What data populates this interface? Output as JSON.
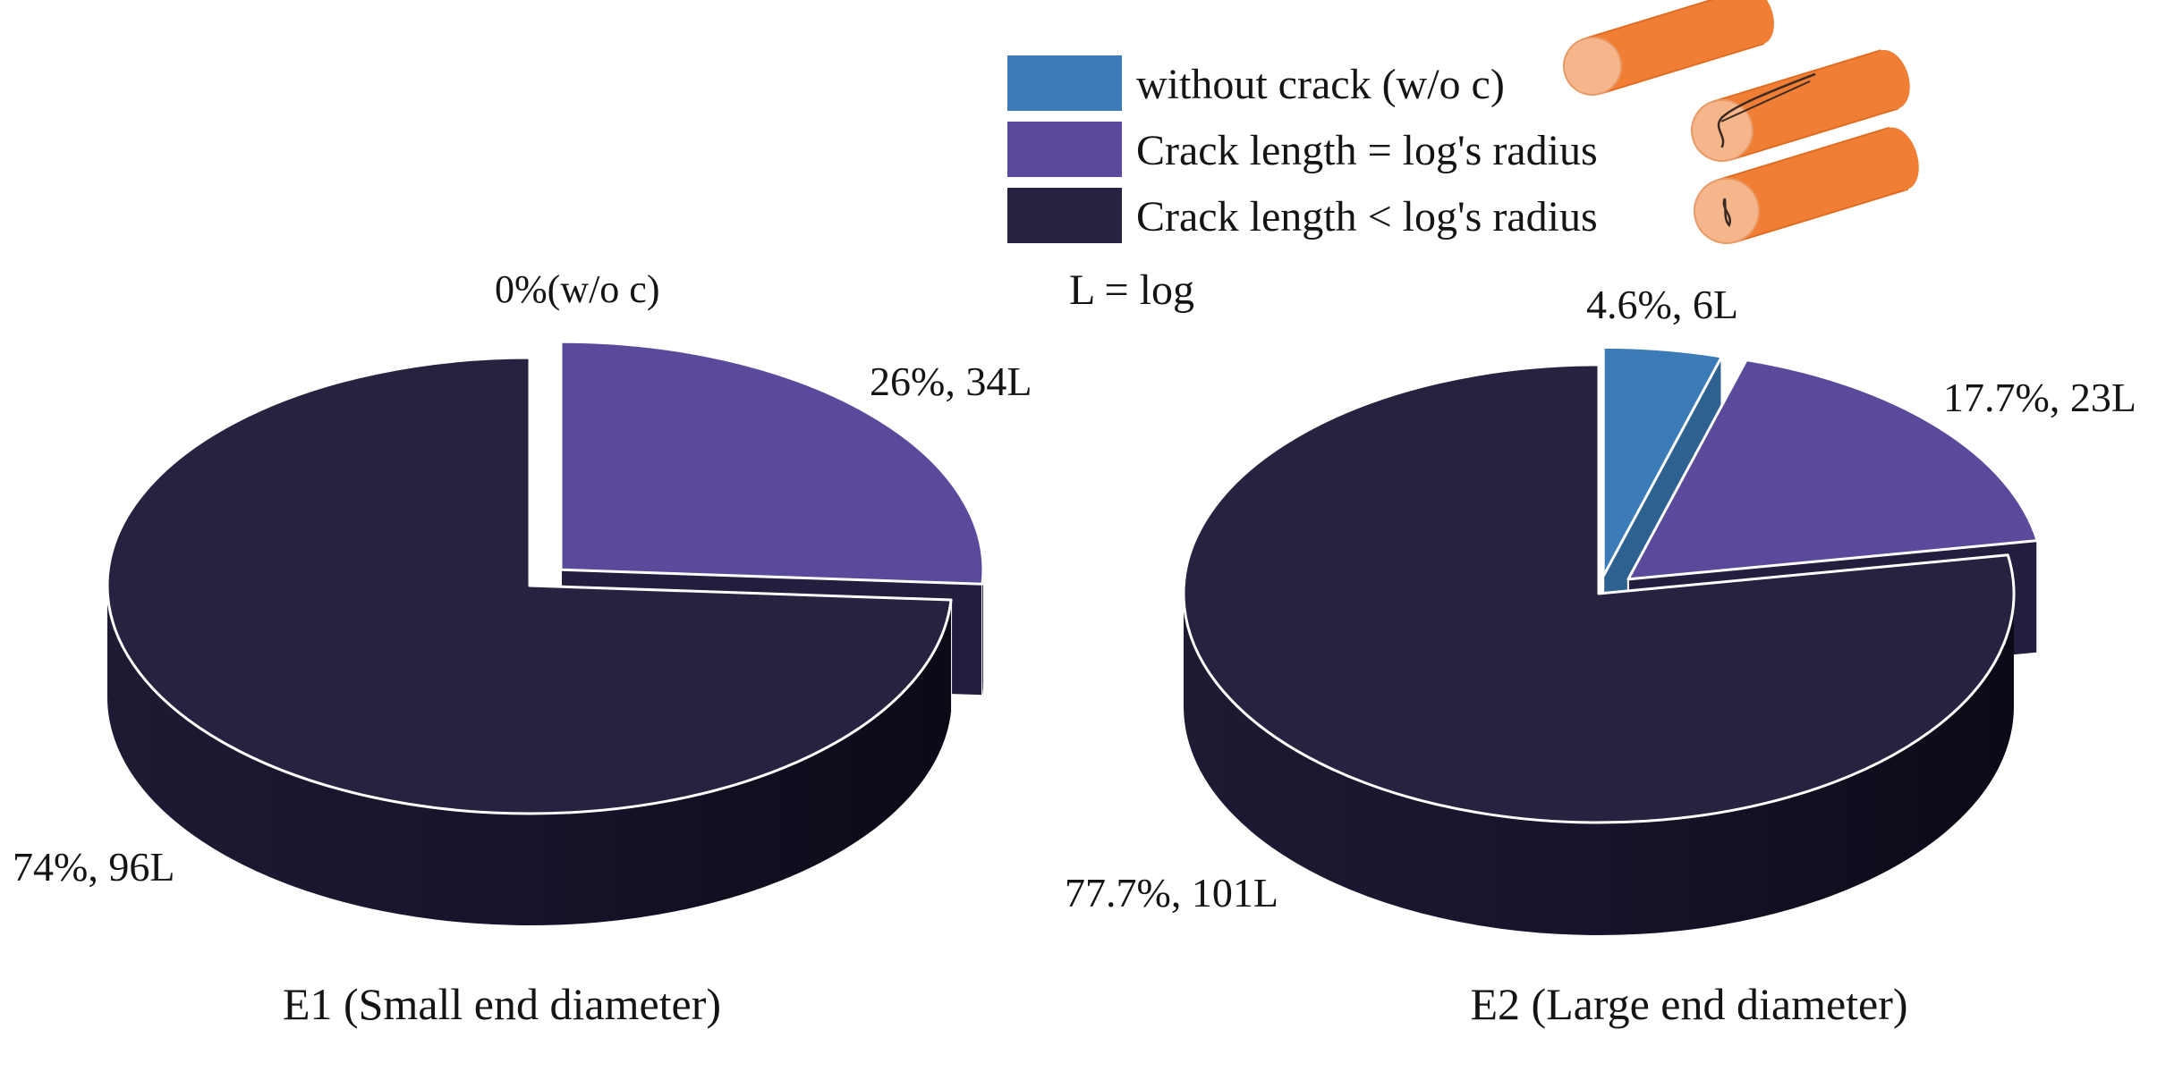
{
  "legend": {
    "note": "L = log",
    "items": [
      {
        "label": "without crack (w/o c)",
        "color": "#3a7bb8",
        "icon": "log-icon-no-crack"
      },
      {
        "label": "Crack length = log's radius",
        "color": "#5b4a9b",
        "icon": "log-icon-long-crack"
      },
      {
        "label": "Crack length < log's radius",
        "color": "#28213f",
        "icon": "log-icon-short-crack"
      }
    ]
  },
  "colors": {
    "log_body": "#f07f35",
    "log_end": "#f6b68c",
    "edge": "#ffffff"
  },
  "chart_data": [
    {
      "type": "pie",
      "style": "3d-exploded",
      "title": "E1 (Small end diameter)",
      "slices": [
        {
          "name": "without crack (w/o c)",
          "percent": 0,
          "logs": 0,
          "label": "0%(w/o c)"
        },
        {
          "name": "Crack length = log's radius",
          "percent": 26,
          "logs": 34,
          "label": "26%, 34L"
        },
        {
          "name": "Crack length < log's radius",
          "percent": 74,
          "logs": 96,
          "label": "74%, 96L"
        }
      ]
    },
    {
      "type": "pie",
      "style": "3d-exploded",
      "title": "E2 (Large end diameter)",
      "slices": [
        {
          "name": "without crack (w/o c)",
          "percent": 4.6,
          "logs": 6,
          "label": "4.6%, 6L"
        },
        {
          "name": "Crack length = log's radius",
          "percent": 17.7,
          "logs": 23,
          "label": "17.7%, 23L"
        },
        {
          "name": "Crack length < log's radius",
          "percent": 77.7,
          "logs": 101,
          "label": "77.7%, 101L"
        }
      ]
    }
  ]
}
